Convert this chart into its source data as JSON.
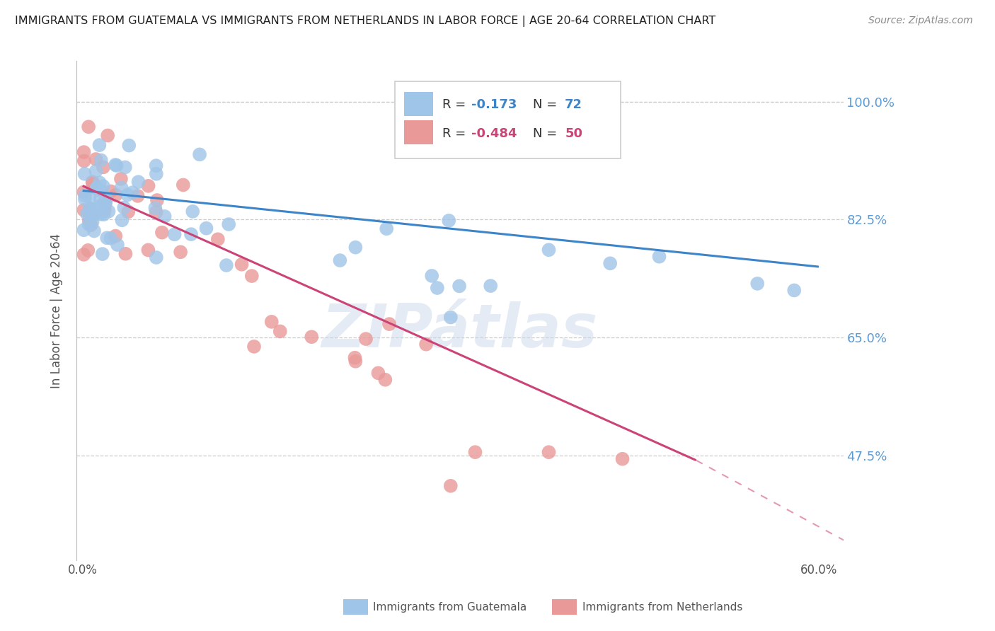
{
  "title": "IMMIGRANTS FROM GUATEMALA VS IMMIGRANTS FROM NETHERLANDS IN LABOR FORCE | AGE 20-64 CORRELATION CHART",
  "source": "Source: ZipAtlas.com",
  "ylabel": "In Labor Force | Age 20-64",
  "xlim": [
    -0.005,
    0.62
  ],
  "ylim": [
    0.32,
    1.06
  ],
  "yticks": [
    0.475,
    0.65,
    0.825,
    1.0
  ],
  "ytick_labels": [
    "47.5%",
    "65.0%",
    "82.5%",
    "100.0%"
  ],
  "xtick_labels": [
    "0.0%",
    "",
    "",
    "",
    "",
    "",
    "60.0%"
  ],
  "xticks": [
    0.0,
    0.1,
    0.2,
    0.3,
    0.4,
    0.5,
    0.6
  ],
  "guatemala_color": "#9fc5e8",
  "netherlands_color": "#ea9999",
  "guatemala_line_color": "#3d85c8",
  "netherlands_line_color": "#cc4477",
  "guatemala_R": -0.173,
  "guatemala_N": 72,
  "netherlands_R": -0.484,
  "netherlands_N": 50,
  "legend_label_1": "Immigrants from Guatemala",
  "legend_label_2": "Immigrants from Netherlands",
  "watermark": "ZIPátlas",
  "background_color": "#ffffff",
  "grid_color": "#cccccc",
  "title_color": "#222222",
  "right_tick_color": "#5b9bd5",
  "bottom_tick_color": "#555555"
}
